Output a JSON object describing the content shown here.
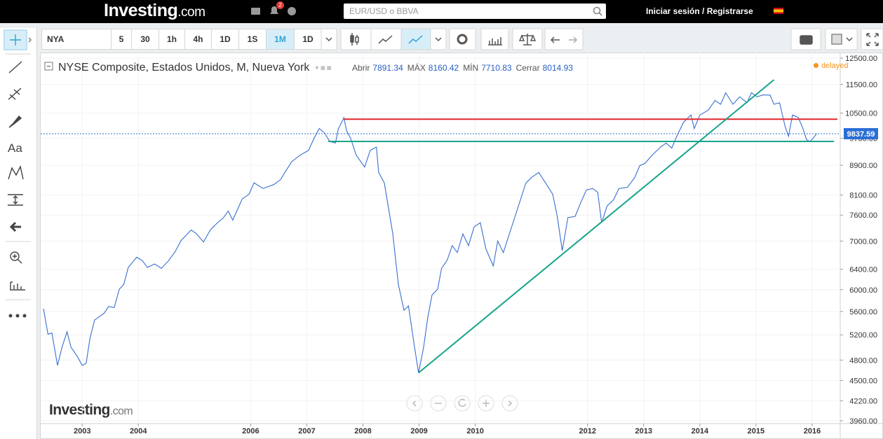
{
  "header": {
    "logo": "Investing",
    "logo_suffix": ".com",
    "notifications": 2,
    "search_placeholder": "EUR/USD o BBVA",
    "login": "Iniciar sesión",
    "separator": "/",
    "register": "Registrarse"
  },
  "toolbar": {
    "symbol": "NYA",
    "intervals": [
      "5",
      "30",
      "1h",
      "4h",
      "1D",
      "1S",
      "1M",
      "1D"
    ],
    "active_interval": 6
  },
  "tools": {
    "text_tool": "Aa"
  },
  "chart_data": {
    "type": "line",
    "title": "NYSE Composite, Estados Unidos, M, Nueva York",
    "ohlc": [
      {
        "label": "Abrir",
        "value": 7891.34
      },
      {
        "label": "MÁX",
        "value": 8160.42
      },
      {
        "label": "MÍN",
        "value": 7710.83
      },
      {
        "label": "Cerrar",
        "value": 8014.93
      }
    ],
    "status": "delayed",
    "watermark": "Investing",
    "watermark_suffix": ".com",
    "last_price": 9837.59,
    "last_price_color": "#2a6fd6",
    "color": "#3a6fd0",
    "log_scale": true,
    "grid": true,
    "xlim": [
      2002.26,
      2016.5
    ],
    "xticks": [
      2003,
      2004,
      2006,
      2007,
      2008,
      2009,
      2010,
      2012,
      2013,
      2014,
      2015,
      2016
    ],
    "ylim": [
      3925,
      12724
    ],
    "yticks": [
      {
        "value": 3960,
        "label": "3960.00"
      },
      {
        "value": 4220,
        "label": "4220.00"
      },
      {
        "value": 4500,
        "label": "4500.00"
      },
      {
        "value": 4800,
        "label": "4800.00"
      },
      {
        "value": 5200,
        "label": "5200.00"
      },
      {
        "value": 5600,
        "label": "5600.00"
      },
      {
        "value": 6000,
        "label": "6000.00"
      },
      {
        "value": 6400,
        "label": "6400.00"
      },
      {
        "value": 7000,
        "label": "7000.00"
      },
      {
        "value": 7600,
        "label": "7600.00"
      },
      {
        "value": 8100,
        "label": "8100.00"
      },
      {
        "value": 8900,
        "label": "8900.00"
      },
      {
        "value": 9700,
        "label": "9700.00"
      },
      {
        "value": 10500,
        "label": "10500.00"
      },
      {
        "value": 11500,
        "label": "11500.00"
      },
      {
        "value": 12500,
        "label": "12500.00"
      }
    ],
    "x": [
      2002.31,
      2002.39,
      2002.46,
      2002.56,
      2002.64,
      2002.73,
      2002.8,
      2002.91,
      2003.0,
      2003.07,
      2003.14,
      2003.22,
      2003.39,
      2003.47,
      2003.57,
      2003.66,
      2003.74,
      2003.82,
      2003.97,
      2004.07,
      2004.16,
      2004.29,
      2004.41,
      2004.54,
      2004.66,
      2004.76,
      2004.94,
      2005.03,
      2005.16,
      2005.28,
      2005.41,
      2005.51,
      2005.6,
      2005.68,
      2005.85,
      2005.97,
      2006.06,
      2006.22,
      2006.41,
      2006.53,
      2006.63,
      2006.73,
      2006.88,
      2007.03,
      2007.13,
      2007.22,
      2007.31,
      2007.41,
      2007.51,
      2007.56,
      2007.66,
      2007.71,
      2007.78,
      2007.88,
      2008.03,
      2008.13,
      2008.24,
      2008.28,
      2008.38,
      2008.53,
      2008.63,
      2008.73,
      2008.81,
      2008.91,
      2008.99,
      2009.08,
      2009.15,
      2009.23,
      2009.33,
      2009.4,
      2009.5,
      2009.59,
      2009.68,
      2009.78,
      2009.88,
      2009.98,
      2010.09,
      2010.19,
      2010.32,
      2010.4,
      2010.5,
      2010.65,
      2010.78,
      2010.9,
      2011.0,
      2011.13,
      2011.25,
      2011.38,
      2011.46,
      2011.55,
      2011.65,
      2011.78,
      2011.88,
      2011.98,
      2012.09,
      2012.18,
      2012.25,
      2012.35,
      2012.46,
      2012.56,
      2012.71,
      2012.84,
      2012.93,
      2013.02,
      2013.15,
      2013.3,
      2013.4,
      2013.5,
      2013.59,
      2013.71,
      2013.84,
      2013.9,
      2014.0,
      2014.15,
      2014.27,
      2014.37,
      2014.46,
      2014.59,
      2014.71,
      2014.84,
      2014.92,
      2015.02,
      2015.12,
      2015.25,
      2015.32,
      2015.42,
      2015.52,
      2015.58,
      2015.65,
      2015.75,
      2015.83,
      2015.9,
      2015.96,
      2016.02,
      2016.08
    ],
    "series": [
      {
        "name": "NYA",
        "values": [
          5650,
          5210,
          5230,
          4720,
          5000,
          5250,
          5000,
          4860,
          4720,
          4750,
          5150,
          5450,
          5570,
          5690,
          5670,
          6010,
          6100,
          6440,
          6650,
          6580,
          6440,
          6510,
          6420,
          6580,
          6780,
          7010,
          7250,
          7170,
          6980,
          7250,
          7420,
          7530,
          7700,
          7480,
          8000,
          8120,
          8420,
          8270,
          8370,
          8500,
          8750,
          9000,
          9190,
          9330,
          9700,
          10000,
          9870,
          9600,
          9550,
          9980,
          10350,
          9920,
          9700,
          9190,
          8850,
          9330,
          9430,
          8700,
          8420,
          7170,
          6100,
          5620,
          5700,
          5050,
          4610,
          5000,
          5470,
          5900,
          6010,
          6420,
          6590,
          6900,
          6750,
          7160,
          6900,
          7320,
          7420,
          6830,
          6470,
          7000,
          6750,
          7330,
          7870,
          8410,
          8560,
          8700,
          8420,
          8120,
          7570,
          6790,
          7540,
          7570,
          7910,
          8230,
          8270,
          8170,
          7420,
          7830,
          7970,
          8270,
          8300,
          8560,
          8890,
          8950,
          9190,
          9430,
          9550,
          9400,
          9760,
          10200,
          10440,
          10000,
          10440,
          10600,
          10930,
          10800,
          11200,
          10800,
          11060,
          10850,
          11200,
          11060,
          11120,
          11120,
          10800,
          10850,
          10060,
          9760,
          10440,
          10360,
          10030,
          9650,
          9600,
          9700,
          9840
        ]
      }
    ],
    "drawings": [
      {
        "x1": 2007.66,
        "y1": 10300,
        "x2": 2016.45,
        "y2": 10300,
        "color": "#e3262b"
      },
      {
        "x1": 2007.38,
        "y1": 9600,
        "x2": 2016.39,
        "y2": 9600,
        "color": "#16a58a"
      },
      {
        "x1": 2008.99,
        "y1": 4610,
        "x2": 2015.32,
        "y2": 11670,
        "color": "#16a58a"
      }
    ]
  }
}
